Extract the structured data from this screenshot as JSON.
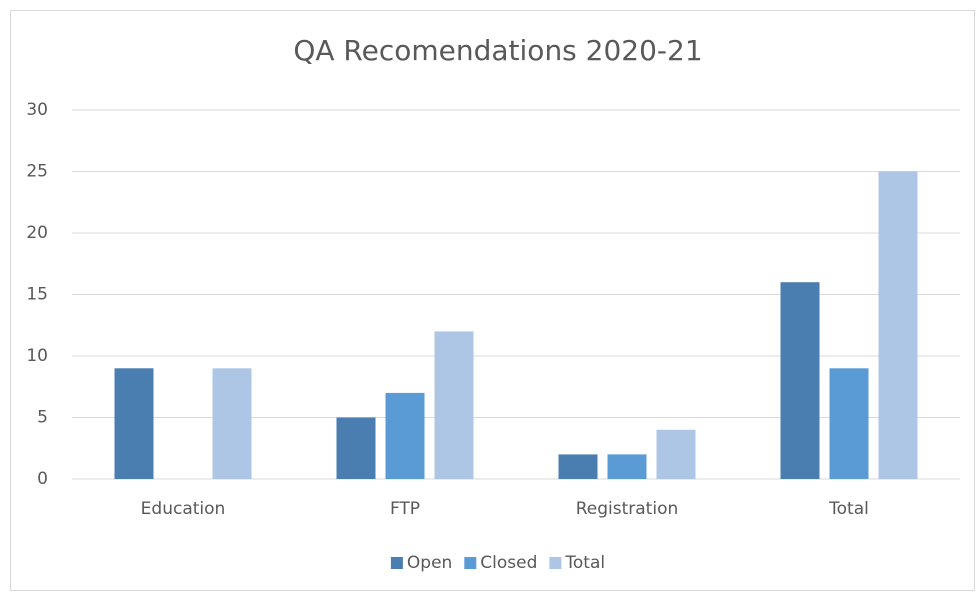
{
  "chart_data": {
    "type": "bar",
    "title": "QA Recomendations 2020-21",
    "categories": [
      "Education",
      "FTP",
      "Registration",
      "Total"
    ],
    "series": [
      {
        "name": "Open",
        "color": "#4a7eb1",
        "values": [
          9,
          5,
          2,
          16
        ]
      },
      {
        "name": "Closed",
        "color": "#5b9bd5",
        "values": [
          0,
          7,
          2,
          9
        ]
      },
      {
        "name": "Total",
        "color": "#adc6e6",
        "values": [
          9,
          12,
          4,
          25
        ]
      }
    ],
    "ylim": [
      0,
      30
    ],
    "yticks": [
      0,
      5,
      10,
      15,
      20,
      25,
      30
    ],
    "grid": true,
    "legend": "bottom"
  }
}
